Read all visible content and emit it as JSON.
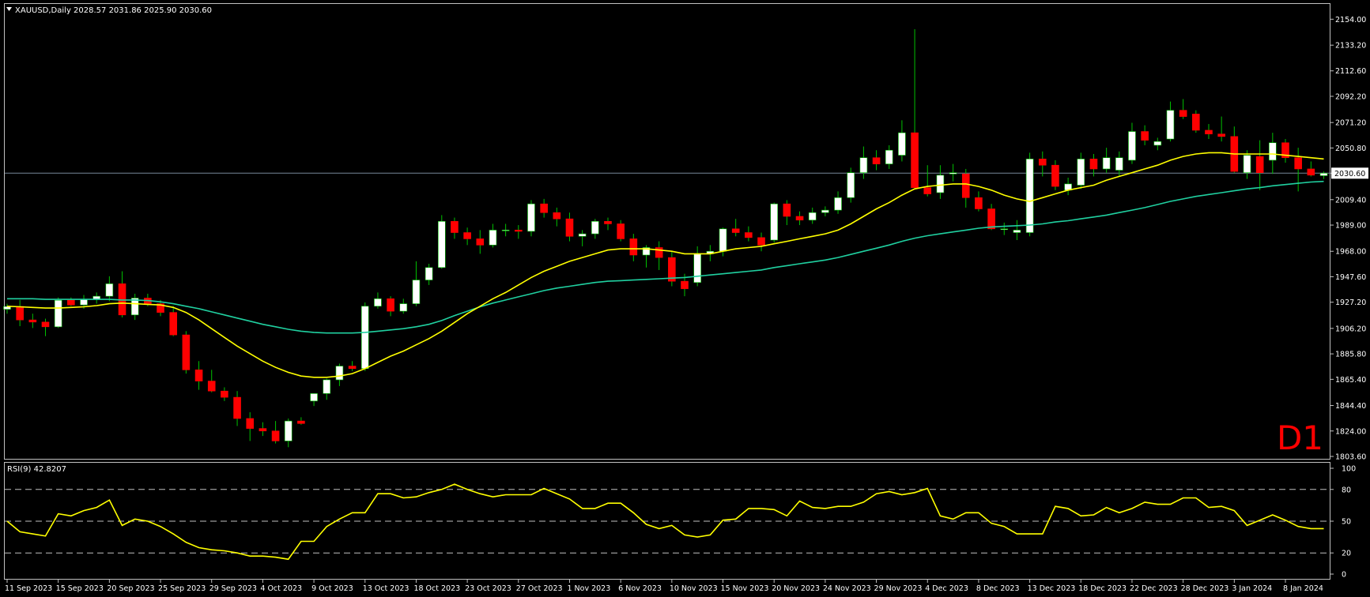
{
  "header": {
    "symbol_line": "XAUUSD,Daily  2028.57 2031.86 2025.90 2030.60",
    "rsi_label": "RSI(9) 42.8207",
    "watermark": "D1"
  },
  "colors": {
    "background": "#000000",
    "frame": "#c0c0c0",
    "bull_candle": "#ffffff",
    "bear_candle": "#ff0000",
    "wick": "#00c000",
    "ma_fast": "#ffff00",
    "ma_slow": "#20d0a0",
    "rsi_line": "#ffff00",
    "price_line": "#778899",
    "axis_text": "#ffffff",
    "watermark": "#ff0000"
  },
  "chart_data": [
    {
      "type": "candlestick",
      "title": "XAUUSD,Daily",
      "y_ticks": [
        "2154.00",
        "2133.20",
        "2112.60",
        "2092.20",
        "2071.20",
        "2050.80",
        "2030.60",
        "2009.40",
        "1989.00",
        "1968.00",
        "1947.60",
        "1927.20",
        "1906.20",
        "1885.80",
        "1865.40",
        "1844.40",
        "1824.00",
        "1803.60"
      ],
      "ylim": [
        1803.6,
        2158
      ],
      "current_price": 2030.6,
      "x_ticks": [
        "11 Sep 2023",
        "15 Sep 2023",
        "20 Sep 2023",
        "25 Sep 2023",
        "29 Sep 2023",
        "4 Oct 2023",
        "9 Oct 2023",
        "13 Oct 2023",
        "18 Oct 2023",
        "23 Oct 2023",
        "27 Oct 2023",
        "1 Nov 2023",
        "6 Nov 2023",
        "10 Nov 2023",
        "15 Nov 2023",
        "20 Nov 2023",
        "24 Nov 2023",
        "29 Nov 2023",
        "4 Dec 2023",
        "8 Dec 2023",
        "13 Dec 2023",
        "18 Dec 2023",
        "22 Dec 2023",
        "28 Dec 2023",
        "3 Jan 2024",
        "8 Jan 2024"
      ],
      "x_tick_indices": [
        0,
        4,
        8,
        12,
        16,
        20,
        24,
        28,
        32,
        36,
        40,
        44,
        48,
        52,
        56,
        60,
        64,
        68,
        72,
        76,
        80,
        84,
        88,
        92,
        96,
        100
      ],
      "ohlc": [
        [
          1921.5,
          1926.0,
          1918.0,
          1923.8
        ],
        [
          1923.8,
          1929.0,
          1908.0,
          1913.0
        ],
        [
          1913.0,
          1918.0,
          1906.5,
          1911.3
        ],
        [
          1911.3,
          1914.0,
          1900.0,
          1907.5
        ],
        [
          1907.5,
          1931.0,
          1906.5,
          1928.8
        ],
        [
          1928.8,
          1931.0,
          1924.0,
          1925.0
        ],
        [
          1925.0,
          1933.0,
          1922.0,
          1929.5
        ],
        [
          1929.5,
          1935.0,
          1926.0,
          1932.0
        ],
        [
          1932.0,
          1948.0,
          1928.0,
          1942.0
        ],
        [
          1942.0,
          1952.0,
          1915.0,
          1917.0
        ],
        [
          1917.0,
          1934.0,
          1913.0,
          1930.5
        ],
        [
          1930.5,
          1934.0,
          1924.0,
          1926.0
        ],
        [
          1926.0,
          1929.0,
          1916.0,
          1919.0
        ],
        [
          1919.0,
          1924.0,
          1900.0,
          1901.0
        ],
        [
          1901.0,
          1904.0,
          1870.0,
          1873.0
        ],
        [
          1873.0,
          1880.0,
          1857.0,
          1864.0
        ],
        [
          1864.0,
          1873.0,
          1855.0,
          1856.0
        ],
        [
          1856.0,
          1859.0,
          1848.0,
          1851.0
        ],
        [
          1851.0,
          1856.0,
          1828.0,
          1834.0
        ],
        [
          1834.0,
          1839.0,
          1816.0,
          1826.0
        ],
        [
          1826.0,
          1831.0,
          1820.0,
          1824.0
        ],
        [
          1824.0,
          1832.0,
          1814.0,
          1816.0
        ],
        [
          1816.0,
          1834.0,
          1811.0,
          1832.0
        ],
        [
          1832.0,
          1835.0,
          1829.0,
          1830.0
        ],
        [
          1848.0,
          1853.0,
          1844.0,
          1854.0
        ],
        [
          1854.0,
          1866.0,
          1849.0,
          1865.0
        ],
        [
          1865.0,
          1878.0,
          1860.0,
          1876.0
        ],
        [
          1876.0,
          1880.0,
          1872.0,
          1874.0
        ],
        [
          1874.0,
          1927.0,
          1872.0,
          1924.0
        ],
        [
          1924.0,
          1935.0,
          1922.0,
          1930.0
        ],
        [
          1930.0,
          1932.0,
          1916.0,
          1920.0
        ],
        [
          1920.0,
          1930.0,
          1918.0,
          1926.0
        ],
        [
          1926.0,
          1960.0,
          1924.0,
          1945.0
        ],
        [
          1945.0,
          1958.0,
          1941.0,
          1955.0
        ],
        [
          1955.0,
          1997.0,
          1954.0,
          1992.0
        ],
        [
          1992.0,
          1995.0,
          1978.0,
          1983.0
        ],
        [
          1983.0,
          1987.0,
          1973.0,
          1978.0
        ],
        [
          1978.0,
          1985.0,
          1966.0,
          1973.0
        ],
        [
          1973.0,
          1990.0,
          1971.0,
          1985.0
        ],
        [
          1985.0,
          1990.0,
          1980.0,
          1985.0
        ],
        [
          1985.0,
          1989.0,
          1978.0,
          1984.0
        ],
        [
          1984.0,
          2009.0,
          1980.0,
          2006.0
        ],
        [
          2006.0,
          2010.0,
          1995.0,
          1999.0
        ],
        [
          1999.0,
          2003.0,
          1988.0,
          1994.0
        ],
        [
          1994.0,
          1999.0,
          1976.0,
          1980.0
        ],
        [
          1980.0,
          1985.0,
          1972.0,
          1982.0
        ],
        [
          1982.0,
          1994.0,
          1978.0,
          1992.0
        ],
        [
          1992.0,
          1995.0,
          1985.0,
          1990.0
        ],
        [
          1990.0,
          1993.0,
          1976.0,
          1978.0
        ],
        [
          1978.0,
          1982.0,
          1960.0,
          1965.0
        ],
        [
          1965.0,
          1973.0,
          1955.0,
          1971.0
        ],
        [
          1971.0,
          1976.0,
          1953.0,
          1963.0
        ],
        [
          1963.0,
          1968.0,
          1940.0,
          1944.0
        ],
        [
          1944.0,
          1950.0,
          1932.0,
          1938.0
        ],
        [
          1943.0,
          1972.0,
          1940.0,
          1966.0
        ],
        [
          1966.0,
          1973.0,
          1960.0,
          1968.0
        ],
        [
          1968.0,
          1987.0,
          1964.0,
          1986.0
        ],
        [
          1986.0,
          1994.0,
          1980.0,
          1983.0
        ],
        [
          1983.0,
          1988.0,
          1976.0,
          1979.0
        ],
        [
          1979.0,
          1983.0,
          1968.0,
          1973.0
        ],
        [
          1977.0,
          2007.0,
          1975.0,
          2006.0
        ],
        [
          2006.0,
          2009.0,
          1989.0,
          1996.0
        ],
        [
          1996.0,
          2000.0,
          1989.0,
          1993.0
        ],
        [
          1993.0,
          2003.0,
          1990.0,
          1999.0
        ],
        [
          1999.0,
          2004.0,
          1996.0,
          2001.0
        ],
        [
          2001.0,
          2016.0,
          1998.0,
          2011.0
        ],
        [
          2011.0,
          2035.0,
          2007.0,
          2031.0
        ],
        [
          2031.0,
          2052.0,
          2026.0,
          2043.0
        ],
        [
          2043.0,
          2049.0,
          2033.0,
          2038.0
        ],
        [
          2038.0,
          2053.0,
          2034.0,
          2049.0
        ],
        [
          2045.0,
          2073.0,
          2040.0,
          2063.0
        ],
        [
          2063.0,
          2146.0,
          2018.0,
          2019.0
        ],
        [
          2019.0,
          2037.0,
          2012.0,
          2014.0
        ],
        [
          2015.0,
          2037.0,
          2010.0,
          2029.0
        ],
        [
          2030.0,
          2038.0,
          2024.0,
          2031.0
        ],
        [
          2030.0,
          2034.0,
          2003.0,
          2011.0
        ],
        [
          2011.0,
          2016.0,
          2000.0,
          2002.0
        ],
        [
          2002.0,
          2006.0,
          1985.0,
          1986.0
        ],
        [
          1986.0,
          1991.0,
          1981.0,
          1986.0
        ],
        [
          1983.0,
          1993.0,
          1977.0,
          1985.0
        ],
        [
          1983.0,
          2047.0,
          1980.0,
          2042.0
        ],
        [
          2042.0,
          2048.0,
          2028.0,
          2037.0
        ],
        [
          2037.0,
          2041.0,
          2017.0,
          2020.0
        ],
        [
          2017.0,
          2027.0,
          2013.0,
          2022.0
        ],
        [
          2021.0,
          2047.0,
          2018.0,
          2042.0
        ],
        [
          2042.0,
          2046.0,
          2028.0,
          2034.0
        ],
        [
          2034.0,
          2051.0,
          2031.0,
          2043.0
        ],
        [
          2033.0,
          2048.0,
          2028.0,
          2043.0
        ],
        [
          2041.0,
          2071.0,
          2038.0,
          2064.0
        ],
        [
          2064.0,
          2069.0,
          2053.0,
          2057.0
        ],
        [
          2053.0,
          2059.0,
          2049.0,
          2056.0
        ],
        [
          2058.0,
          2088.0,
          2056.0,
          2081.0
        ],
        [
          2081.0,
          2090.0,
          2074.0,
          2076.0
        ],
        [
          2078.0,
          2081.0,
          2063.0,
          2065.0
        ],
        [
          2065.0,
          2070.0,
          2058.0,
          2062.0
        ],
        [
          2062.0,
          2076.0,
          2056.0,
          2060.0
        ],
        [
          2060.0,
          2068.0,
          2031.0,
          2032.0
        ],
        [
          2031.0,
          2049.0,
          2026.0,
          2045.0
        ],
        [
          2044.0,
          2057.0,
          2017.0,
          2031.0
        ],
        [
          2041.0,
          2063.0,
          2030.0,
          2055.0
        ],
        [
          2055.0,
          2058.0,
          2039.0,
          2043.0
        ],
        [
          2043.0,
          2051.0,
          2016.0,
          2034.0
        ],
        [
          2034.0,
          2040.0,
          2028.0,
          2029.0
        ],
        [
          2028.6,
          2031.9,
          2025.9,
          2030.6
        ]
      ],
      "ma_fast": [
        1924,
        1923.5,
        1923.0,
        1922.5,
        1922.5,
        1923,
        1923.5,
        1924.5,
        1926,
        1926.5,
        1926,
        1925.5,
        1925,
        1923,
        1919,
        1913,
        1906,
        1899,
        1892,
        1886,
        1880,
        1875,
        1871,
        1868,
        1867,
        1867,
        1868,
        1870,
        1874,
        1879,
        1884,
        1888,
        1893,
        1898,
        1904,
        1911,
        1918,
        1924,
        1930,
        1935,
        1941,
        1947,
        1952,
        1956,
        1960,
        1963,
        1966,
        1969,
        1970,
        1970,
        1970,
        1969,
        1968,
        1966,
        1966,
        1966,
        1968,
        1970,
        1971,
        1972,
        1974,
        1976,
        1978,
        1980,
        1982,
        1985,
        1990,
        1996,
        2002,
        2007,
        2013,
        2018,
        2020,
        2021,
        2022,
        2022,
        2020,
        2017,
        2013,
        2010,
        2008,
        2011,
        2014,
        2017,
        2019,
        2021,
        2025,
        2028,
        2031,
        2034,
        2037,
        2041,
        2044,
        2046,
        2047,
        2047,
        2046,
        2046,
        2046,
        2046,
        2045,
        2044,
        2043,
        2042
      ],
      "ma_slow": [
        1930,
        1930,
        1930,
        1929.5,
        1929.5,
        1929.5,
        1929.5,
        1929.5,
        1929.5,
        1929,
        1929,
        1928.5,
        1927.5,
        1926,
        1924,
        1922,
        1919.5,
        1917,
        1914.5,
        1912,
        1909.5,
        1907.5,
        1905.5,
        1904,
        1903,
        1902.5,
        1902.5,
        1902.5,
        1903,
        1904,
        1905,
        1906,
        1907.5,
        1909.5,
        1912.5,
        1916.5,
        1920,
        1923.5,
        1926.5,
        1929,
        1931.5,
        1934,
        1936.5,
        1938.5,
        1940,
        1941.5,
        1943,
        1944,
        1944.5,
        1945,
        1945.5,
        1946,
        1946.5,
        1947,
        1948,
        1949,
        1950,
        1951,
        1952,
        1953,
        1955,
        1956.5,
        1958,
        1959.5,
        1961,
        1963,
        1965.5,
        1968,
        1970.5,
        1973,
        1976,
        1978.5,
        1980.5,
        1982,
        1983.5,
        1985,
        1986.5,
        1987.5,
        1988,
        1988.5,
        1989,
        1990,
        1991.5,
        1992.5,
        1994,
        1995.5,
        1997,
        1999,
        2001,
        2003,
        2005.5,
        2008,
        2010,
        2012,
        2013.5,
        2015,
        2016.5,
        2018,
        2019,
        2020.5,
        2021.5,
        2022.5,
        2023.5,
        2024
      ]
    },
    {
      "type": "line",
      "title": "RSI(9) 42.8207",
      "y_ticks": [
        "100",
        "80",
        "50",
        "20",
        "0"
      ],
      "levels": [
        80,
        50,
        20
      ],
      "ylim": [
        0,
        100
      ],
      "rsi": [
        50,
        40,
        38,
        36,
        57,
        55,
        60,
        63,
        70,
        46,
        52,
        50,
        45,
        38,
        30,
        25,
        23,
        22,
        20,
        17,
        17,
        16,
        14,
        31,
        31,
        45,
        52,
        58,
        58,
        76,
        76,
        72,
        73,
        77,
        80,
        85,
        80,
        76,
        73,
        75,
        75,
        75,
        81,
        76,
        71,
        62,
        62,
        67,
        67,
        58,
        47,
        43,
        46,
        37,
        35,
        37,
        51,
        52,
        62,
        62,
        61,
        55,
        69,
        63,
        62,
        64,
        64,
        68,
        76,
        78,
        75,
        77,
        81,
        55,
        52,
        58,
        58,
        48,
        45,
        38,
        38,
        38,
        64,
        62,
        55,
        56,
        63,
        58,
        62,
        68,
        66,
        66,
        72,
        72,
        63,
        64,
        60,
        46,
        51,
        56,
        51,
        45,
        43,
        43
      ]
    }
  ]
}
